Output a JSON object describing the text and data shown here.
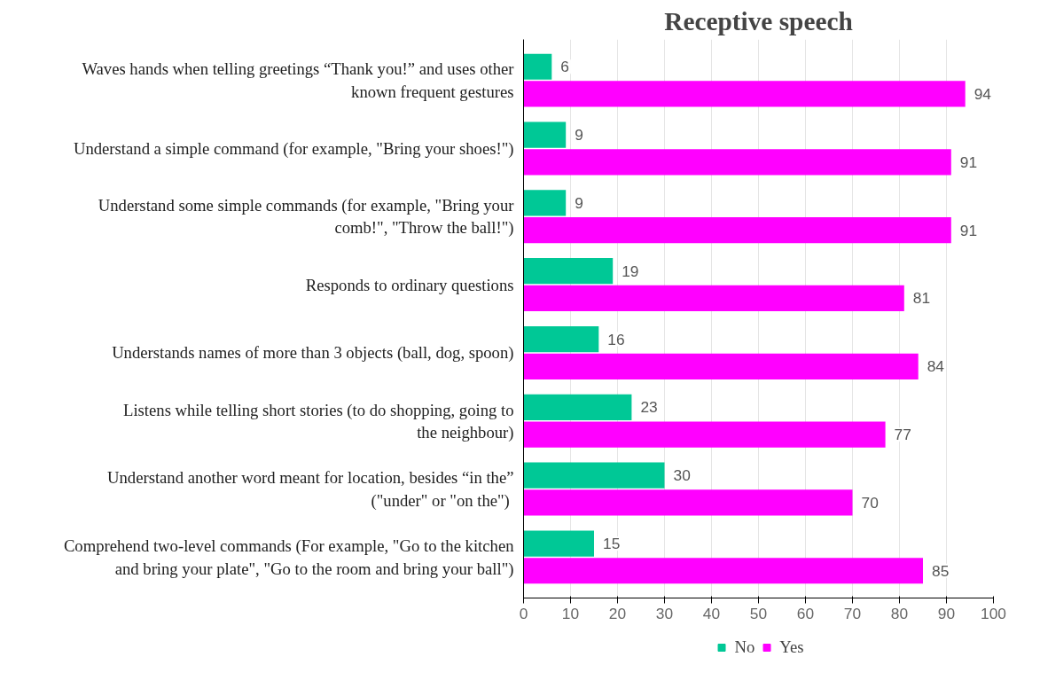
{
  "chart_data": {
    "type": "bar",
    "orientation": "horizontal",
    "title": "Receptive speech",
    "categories": [
      "Waves hands when telling greetings “Thank you!” and uses other known frequent gestures",
      "Understand a simple command (for example, \"Bring your shoes!\")",
      "Understand some simple commands (for example, \"Bring your comb!\", \"Throw the ball!\")",
      "Responds to ordinary questions",
      "Understands names of more than 3 objects (ball, dog, spoon)",
      "Listens while telling short stories (to do shopping, going to the neighbour)",
      "Understand another word meant for location, besides “in the” (\"under\"  or \"on the\")",
      "Comprehend two-level commands (For example, \"Go to the kitchen and bring your plate\", \"Go to the room and bring your ball\")"
    ],
    "series": [
      {
        "name": "No",
        "color": "#00c896",
        "values": [
          6,
          9,
          9,
          19,
          16,
          23,
          30,
          15
        ]
      },
      {
        "name": "Yes",
        "color": "#ff00ff",
        "values": [
          94,
          91,
          91,
          81,
          84,
          77,
          70,
          85
        ]
      }
    ],
    "xlim": [
      0,
      100
    ],
    "xticks": [
      0,
      10,
      20,
      30,
      40,
      50,
      60,
      70,
      80,
      90,
      100
    ],
    "grid": "x",
    "legend": "bottom",
    "data_labels": true
  }
}
